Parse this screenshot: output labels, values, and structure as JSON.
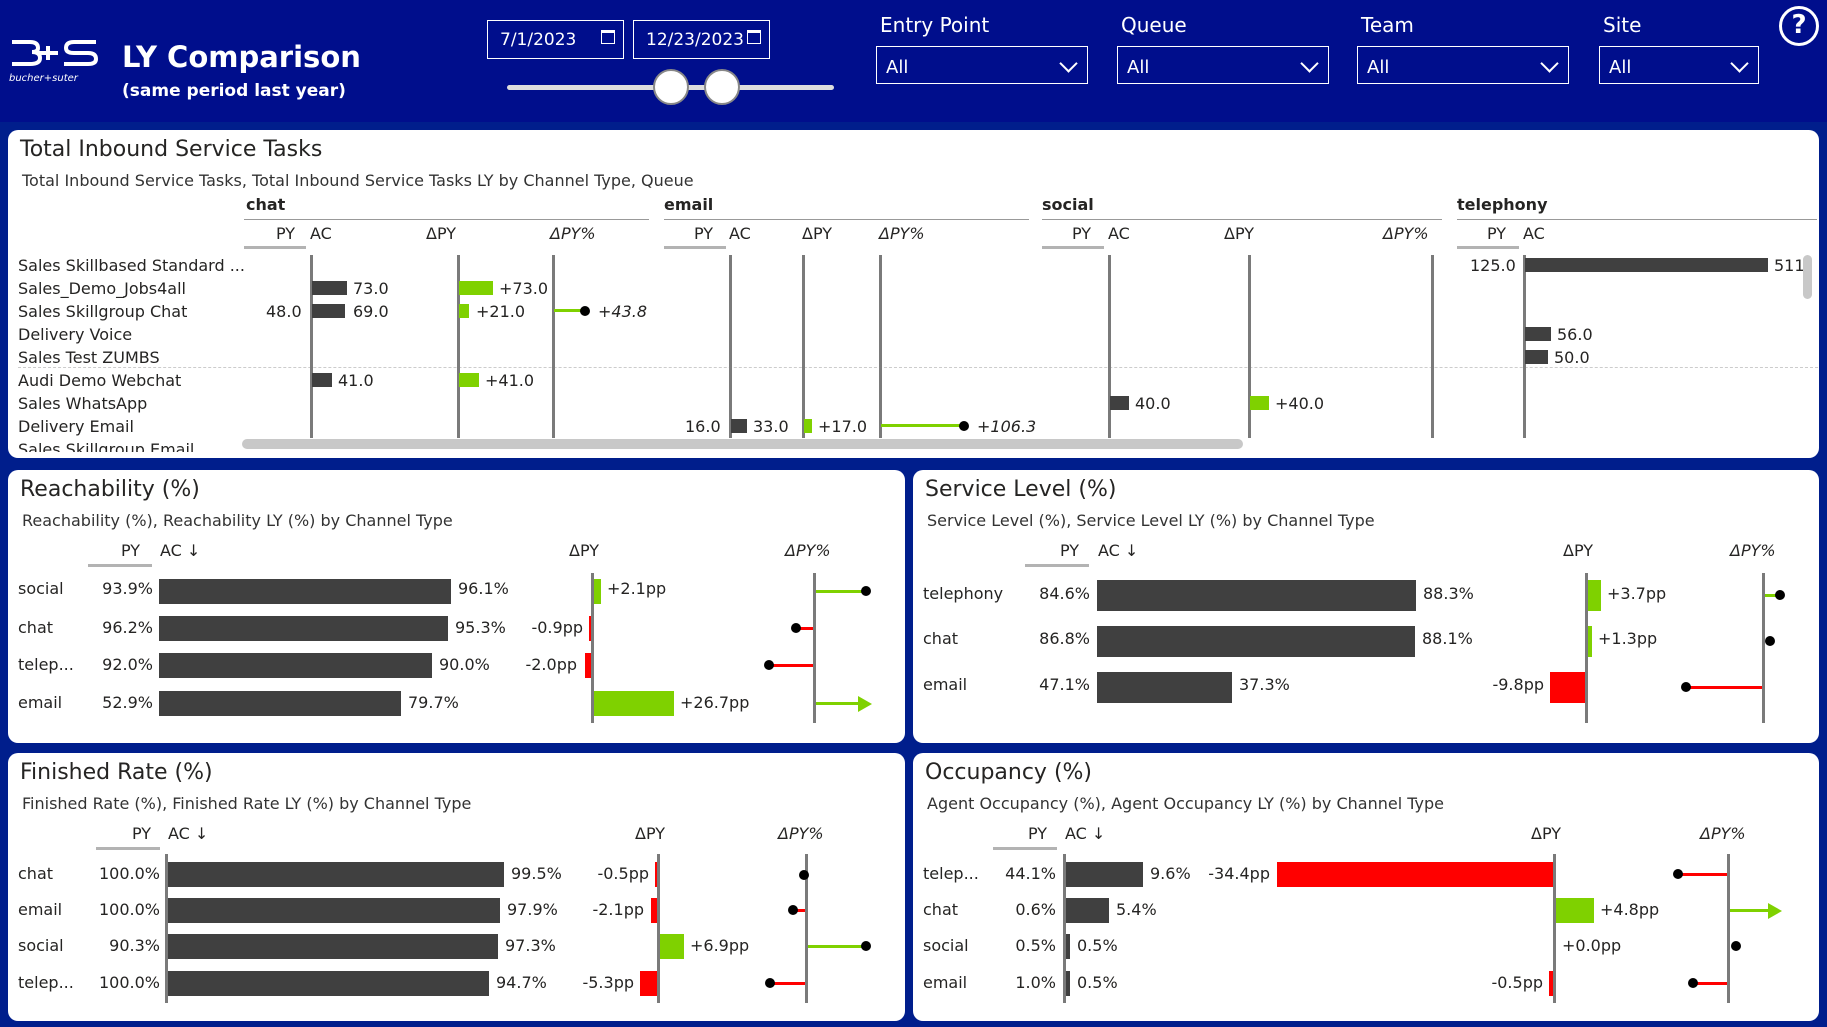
{
  "header": {
    "logo_name": "bucher+suter",
    "title": "LY Comparison",
    "subtitle": "(same period last year)",
    "date_from": "7/1/2023",
    "date_to": "12/23/2023",
    "help": "?",
    "filters": [
      {
        "label": "Entry Point",
        "value": "All"
      },
      {
        "label": "Queue",
        "value": "All"
      },
      {
        "label": "Team",
        "value": "All"
      },
      {
        "label": "Site",
        "value": "All"
      }
    ]
  },
  "colors": {
    "header_bg": "#000e8c",
    "bar": "#404040",
    "positive": "#7fd100",
    "negative": "#ff0000"
  },
  "inbound": {
    "title": "Total Inbound Service Tasks",
    "subtitle": "Total Inbound Service Tasks, Total Inbound Service Tasks LY by Channel Type, Queue",
    "groups": [
      "chat",
      "email",
      "social",
      "telephony"
    ],
    "col_py": "PY",
    "col_ac": "AC",
    "col_dpy": "ΔPY",
    "col_dpyp": "ΔPY%",
    "rows": [
      "Sales Skillbased Standard ...",
      "Sales_Demo_Jobs4all",
      "Sales Skillgroup Chat",
      "Delivery Voice",
      "Sales Test ZUMBS",
      "Audi Demo Webchat",
      "Sales WhatsApp",
      "Delivery Email",
      "Sales Skillgroup Email"
    ],
    "chat": {
      "ac": [
        "73.0",
        "69.0",
        "41.0"
      ],
      "dpy": [
        "+73.0",
        "+21.0",
        "+41.0"
      ],
      "py": [
        "48.0"
      ],
      "dpyp": [
        "+43.8"
      ]
    },
    "email": {
      "py": "16.0",
      "ac": "33.0",
      "dpy": "+17.0",
      "dpyp": "+106.3"
    },
    "social": {
      "ac": "40.0",
      "dpy": "+40.0"
    },
    "telephony": {
      "py": "125.0",
      "ac": [
        "511",
        "56.0",
        "50.0"
      ]
    }
  },
  "reach": {
    "title": "Reachability (%)",
    "subtitle": "Reachability (%), Reachability LY (%) by Channel Type",
    "h_py": "PY",
    "h_ac": "AC ↓",
    "h_dpy": "ΔPY",
    "h_dpyp": "ΔPY%",
    "rows": [
      {
        "label": "social",
        "py": "93.9%",
        "ac": "96.1%",
        "dpy": "+2.1pp"
      },
      {
        "label": "chat",
        "py": "96.2%",
        "ac": "95.3%",
        "dpy": "-0.9pp"
      },
      {
        "label": "telep...",
        "py": "92.0%",
        "ac": "90.0%",
        "dpy": "-2.0pp"
      },
      {
        "label": "email",
        "py": "52.9%",
        "ac": "79.7%",
        "dpy": "+26.7pp"
      }
    ]
  },
  "service": {
    "title": "Service Level (%)",
    "subtitle": "Service Level (%), Service Level LY (%) by Channel Type",
    "h_py": "PY",
    "h_ac": "AC ↓",
    "h_dpy": "ΔPY",
    "h_dpyp": "ΔPY%",
    "rows": [
      {
        "label": "telephony",
        "py": "84.6%",
        "ac": "88.3%",
        "dpy": "+3.7pp"
      },
      {
        "label": "chat",
        "py": "86.8%",
        "ac": "88.1%",
        "dpy": "+1.3pp"
      },
      {
        "label": "email",
        "py": "47.1%",
        "ac": "37.3%",
        "dpy": "-9.8pp"
      }
    ]
  },
  "finished": {
    "title": "Finished Rate (%)",
    "subtitle": "Finished Rate (%), Finished Rate LY (%) by Channel Type",
    "h_py": "PY",
    "h_ac": "AC ↓",
    "h_dpy": "ΔPY",
    "h_dpyp": "ΔPY%",
    "rows": [
      {
        "label": "chat",
        "py": "100.0%",
        "ac": "99.5%",
        "dpy": "-0.5pp"
      },
      {
        "label": "email",
        "py": "100.0%",
        "ac": "97.9%",
        "dpy": "-2.1pp"
      },
      {
        "label": "social",
        "py": "90.3%",
        "ac": "97.3%",
        "dpy": "+6.9pp"
      },
      {
        "label": "telep...",
        "py": "100.0%",
        "ac": "94.7%",
        "dpy": "-5.3pp"
      }
    ]
  },
  "occupancy": {
    "title": "Occupancy (%)",
    "subtitle": "Agent Occupancy (%), Agent Occupancy LY (%) by Channel Type",
    "h_py": "PY",
    "h_ac": "AC ↓",
    "h_dpy": "ΔPY",
    "h_dpyp": "ΔPY%",
    "rows": [
      {
        "label": "telep...",
        "py": "44.1%",
        "ac": "9.6%",
        "dpy": "-34.4pp"
      },
      {
        "label": "chat",
        "py": "0.6%",
        "ac": "5.4%",
        "dpy": "+4.8pp"
      },
      {
        "label": "social",
        "py": "0.5%",
        "ac": "0.5%",
        "dpy": "+0.0pp"
      },
      {
        "label": "email",
        "py": "1.0%",
        "ac": "0.5%",
        "dpy": "-0.5pp"
      }
    ]
  }
}
